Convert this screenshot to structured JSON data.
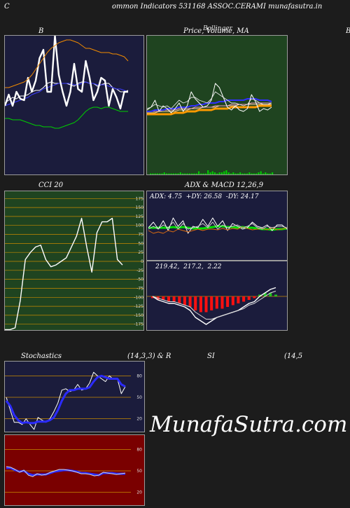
{
  "header": {
    "left_char": "C",
    "title": "ommon  Indicators 531168  ASSOC.CERAMI munafasutra.in"
  },
  "panel_titles": {
    "bollinger": "B",
    "price": "Price,  Volume,  MA",
    "price_overlay": "Bollinger",
    "right_edge": "B",
    "cci": "CCI 20",
    "adx_macd": "ADX  & MACD 12,26,9",
    "stochastics": "Stochastics",
    "stoch_params": "(14,3,3) & R",
    "rsi": "SI",
    "rsi_params": "(14,5"
  },
  "watermark": "MunafaSutra.com",
  "colors": {
    "page_bg": "#1c1c1c",
    "navy_bg": "#1b1c3c",
    "green_bg": "#1f4420",
    "red_bg": "#7a0000",
    "white": "#ffffff",
    "blue": "#2b2bff",
    "green": "#00d800",
    "orange": "#f08a00"
  },
  "chart_data": [
    {
      "type": "line",
      "name": "bollinger-bands",
      "series": [
        {
          "color": "#00d000",
          "values": [
            41,
            41,
            40,
            40,
            40,
            39,
            38,
            37,
            36,
            36,
            35,
            35,
            35,
            34,
            34,
            35,
            36,
            37,
            38,
            40,
            43,
            46,
            48,
            49,
            49,
            48,
            49,
            49,
            48,
            47,
            46,
            46,
            46
          ]
        },
        {
          "color": "#ffffff",
          "values": [
            52,
            54,
            56,
            55,
            57,
            57,
            58,
            60,
            61,
            61,
            63,
            66,
            67,
            66,
            66,
            66,
            66,
            65,
            64,
            66,
            67,
            67,
            66,
            66,
            64,
            65,
            66,
            66,
            63,
            62,
            60,
            60,
            61
          ]
        },
        {
          "color": "#3b3bff",
          "values": [
            50,
            51,
            52,
            53,
            54,
            55,
            56,
            58,
            59,
            60,
            62,
            63,
            64,
            65,
            66,
            66,
            66,
            66,
            65,
            65,
            66,
            67,
            66,
            66,
            65,
            65,
            65,
            64,
            63,
            62,
            62,
            61,
            60
          ]
        },
        {
          "color": "#ffffff",
          "width": 2.4,
          "values": [
            50,
            58,
            50,
            60,
            55,
            54,
            70,
            60,
            68,
            84,
            90,
            60,
            60,
            100,
            72,
            60,
            50,
            60,
            80,
            62,
            60,
            82,
            70,
            54,
            60,
            70,
            68,
            50,
            62,
            56,
            48,
            60,
            60
          ]
        },
        {
          "color": "#f08a00",
          "values": [
            63,
            63,
            64,
            65,
            66,
            67,
            69,
            72,
            76,
            80,
            84,
            88,
            91,
            93,
            95,
            96,
            97,
            97,
            96,
            95,
            93,
            91,
            91,
            90,
            89,
            88,
            88,
            88,
            87,
            87,
            86,
            85,
            82
          ]
        }
      ],
      "ylim": [
        0,
        100
      ]
    },
    {
      "type": "line",
      "name": "price-volume-ma",
      "series": [
        {
          "color": "#ff9a00",
          "width": 3,
          "values": [
            44,
            44,
            44,
            44,
            44,
            44,
            44,
            45,
            45,
            45,
            46,
            46,
            46,
            47,
            47,
            47,
            47,
            48,
            48,
            48,
            48,
            49,
            49,
            49,
            49,
            49,
            49,
            49,
            50,
            50,
            50,
            50
          ]
        },
        {
          "color": "#ffd0a0",
          "values": [
            45,
            45,
            45,
            46,
            46,
            46,
            46,
            46,
            47,
            47,
            47,
            48,
            48,
            48,
            49,
            49,
            49,
            49,
            50,
            50,
            50,
            50,
            50,
            51,
            51,
            51,
            51,
            51,
            51,
            51,
            51,
            51
          ]
        },
        {
          "color": "#f0a0c0",
          "values": [
            46,
            46,
            46,
            46,
            47,
            47,
            47,
            47,
            48,
            48,
            48,
            48,
            49,
            49,
            49,
            49,
            49,
            50,
            50,
            50,
            50,
            51,
            51,
            51,
            51,
            51,
            52,
            52,
            52,
            52,
            52,
            52
          ]
        },
        {
          "color": "#3030ff",
          "width": 2,
          "values": [
            46,
            46,
            47,
            47,
            47,
            48,
            48,
            48,
            49,
            49,
            49,
            50,
            50,
            51,
            51,
            52,
            52,
            52,
            53,
            53,
            54,
            54,
            54,
            54,
            54,
            55,
            55,
            55,
            54,
            54,
            54,
            53
          ]
        },
        {
          "color": "#ffffff",
          "values": [
            47,
            49,
            54,
            46,
            50,
            48,
            45,
            48,
            52,
            46,
            50,
            60,
            55,
            52,
            49,
            50,
            54,
            66,
            63,
            56,
            49,
            47,
            50,
            47,
            46,
            48,
            58,
            53,
            46,
            48,
            47,
            49
          ]
        },
        {
          "color": "#e6e6e6",
          "width": 0.9,
          "values": [
            48,
            49,
            51,
            50,
            49,
            50,
            48,
            51,
            54,
            52,
            53,
            56,
            56,
            54,
            53,
            52,
            55,
            60,
            58,
            56,
            54,
            52,
            52,
            51,
            50,
            51,
            55,
            54,
            52,
            51,
            51,
            52
          ]
        }
      ],
      "volume": [
        1,
        1,
        1,
        1,
        1,
        1,
        2,
        1,
        1,
        1,
        1,
        1,
        1,
        2,
        1,
        1,
        1,
        1,
        1,
        1,
        1,
        3,
        1,
        1,
        1,
        4,
        2,
        3,
        2,
        1,
        2,
        2,
        3,
        4,
        2,
        1,
        2,
        1,
        1,
        2,
        1,
        1,
        1,
        2,
        1,
        1,
        1,
        2,
        3,
        1,
        2,
        1,
        1,
        2
      ],
      "ylim": [
        0,
        100
      ]
    },
    {
      "type": "line",
      "name": "cci-20",
      "series": [
        {
          "color": "#ffffff",
          "width": 1.4,
          "values": [
            -190,
            -190,
            -185,
            -110,
            5,
            25,
            40,
            45,
            5,
            -15,
            -10,
            0,
            10,
            40,
            70,
            120,
            40,
            -30,
            80,
            110,
            110,
            120,
            5,
            -10
          ]
        }
      ],
      "yticks": [
        175,
        150,
        125,
        100,
        75,
        50,
        25,
        0,
        -25,
        -50,
        -75,
        -100,
        -125,
        -150,
        -175
      ],
      "ylim": [
        -195,
        195
      ]
    },
    {
      "type": "line",
      "name": "adx",
      "ADX": "4.75",
      "+DY": "26.58",
      "-DY": "24.17",
      "series": [
        {
          "color": "#00e000",
          "width": 3,
          "values": [
            48,
            48,
            48,
            48,
            48,
            49,
            48,
            49,
            48,
            47,
            47,
            47,
            48,
            49,
            50,
            50,
            49,
            49,
            48,
            49,
            48,
            48,
            47,
            46,
            46,
            45,
            46,
            46,
            47
          ]
        },
        {
          "color": "#ffffff",
          "values": [
            48,
            56,
            46,
            58,
            44,
            62,
            50,
            58,
            40,
            50,
            48,
            60,
            50,
            62,
            50,
            58,
            44,
            54,
            50,
            46,
            48,
            56,
            50,
            48,
            52,
            44,
            52,
            52,
            46
          ]
        },
        {
          "color": "#d86a10",
          "values": [
            44,
            40,
            42,
            40,
            44,
            42,
            46,
            44,
            42,
            44,
            46,
            44,
            46,
            46,
            45,
            47,
            45,
            47,
            46,
            49,
            47,
            45,
            46,
            47,
            45,
            48,
            45,
            46,
            48
          ]
        },
        {
          "color": "#c8c8c8",
          "values": [
            46,
            50,
            46,
            52,
            48,
            56,
            46,
            54,
            46,
            48,
            50,
            54,
            48,
            56,
            46,
            52,
            48,
            50,
            52,
            48,
            50,
            54,
            48,
            46,
            50,
            48,
            50,
            50,
            48
          ]
        }
      ],
      "ylim": [
        0,
        100
      ]
    },
    {
      "type": "line",
      "name": "macd-12-26-9",
      "MACD": "219.42",
      "Signal": "217.2",
      "Hist": "2.22",
      "series": [
        {
          "color": "#ffffff",
          "width": 1.4,
          "values": [
            0,
            -2,
            -3,
            -4,
            -4,
            -5,
            -6,
            -8,
            -12,
            -14,
            -16,
            -14,
            -12,
            -11,
            -10,
            -9,
            -8,
            -6,
            -4,
            -3,
            0,
            2,
            4,
            5
          ]
        },
        {
          "color": "#dcdcdc",
          "values": [
            0,
            -1,
            -2,
            -3,
            -3,
            -4,
            -5,
            -6,
            -9,
            -11,
            -13,
            -13,
            -12,
            -11,
            -10,
            -9,
            -8,
            -7,
            -5,
            -4,
            -2,
            0,
            2,
            3
          ]
        }
      ],
      "histogram": [
        -1,
        -2,
        -2,
        -3,
        -3,
        -4,
        -5,
        -6,
        -8,
        -9,
        -9,
        -8,
        -7,
        -7,
        -6,
        -5,
        -4,
        -3,
        -2,
        -1,
        1,
        2,
        2,
        1
      ],
      "ylim": [
        -20,
        20
      ]
    },
    {
      "type": "line",
      "name": "stochastics-14-3-3",
      "series": [
        {
          "color": "#ffffff",
          "values": [
            50,
            32,
            15,
            15,
            12,
            20,
            12,
            5,
            22,
            18,
            15,
            20,
            30,
            42,
            60,
            62,
            58,
            60,
            68,
            60,
            62,
            70,
            85,
            80,
            76,
            72,
            80,
            75,
            76,
            55,
            65
          ]
        },
        {
          "color": "#2b2bff",
          "width": 3,
          "values": [
            45,
            38,
            25,
            18,
            14,
            15,
            14,
            14,
            16,
            16,
            16,
            18,
            22,
            32,
            45,
            55,
            60,
            60,
            62,
            62,
            62,
            64,
            72,
            78,
            80,
            78,
            76,
            76,
            76,
            68,
            65
          ]
        }
      ],
      "yticks": [
        80,
        50,
        20
      ],
      "ylim": [
        0,
        100
      ]
    },
    {
      "type": "line",
      "name": "rsi-14-5",
      "series": [
        {
          "color": "#2b2bff",
          "width": 3,
          "values": [
            54,
            54,
            51,
            49,
            50,
            46,
            44,
            45,
            45,
            45,
            47,
            49,
            50,
            51,
            51,
            50,
            49,
            47,
            47,
            46,
            45,
            44,
            47,
            47,
            47,
            46,
            46,
            46
          ]
        },
        {
          "color": "#d8d8d8",
          "values": [
            56,
            55,
            52,
            48,
            51,
            44,
            42,
            46,
            44,
            45,
            48,
            50,
            52,
            52,
            51,
            50,
            48,
            46,
            46,
            45,
            43,
            44,
            48,
            47,
            46,
            45,
            46,
            47
          ]
        }
      ],
      "yticks": [
        80,
        50,
        20
      ],
      "ylim": [
        0,
        100
      ]
    }
  ]
}
